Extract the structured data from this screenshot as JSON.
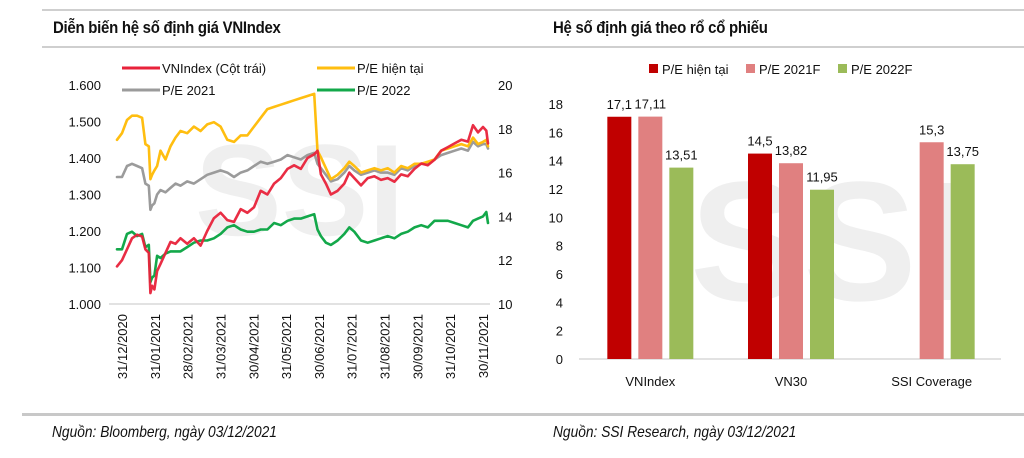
{
  "left_panel": {
    "title": "Diễn biến hệ số định giá VNIndex",
    "source": "Nguồn: Bloomberg, ngày 03/12/2021"
  },
  "right_panel": {
    "title": "Hệ số định giá theo rổ cổ phiếu",
    "source": "Nguồn: SSI Research, ngày 03/12/2021"
  },
  "watermark": "SSI",
  "chart_data": [
    {
      "type": "line",
      "title": "Diễn biến hệ số định giá VNIndex",
      "xlabel": "",
      "ylabel": "",
      "y_left": {
        "range": [
          1000,
          1600
        ],
        "ticks": [
          "1.000",
          "1.100",
          "1.200",
          "1.300",
          "1.400",
          "1.500",
          "1.600"
        ],
        "values": [
          1000,
          1100,
          1200,
          1300,
          1400,
          1500,
          1600
        ]
      },
      "y_right": {
        "range": [
          10,
          20
        ],
        "ticks": [
          "10",
          "12",
          "14",
          "16",
          "18",
          "20"
        ],
        "values": [
          10,
          12,
          14,
          16,
          18,
          20
        ]
      },
      "x_ticks": [
        "31/12/2020",
        "31/01/2021",
        "28/02/2021",
        "31/03/2021",
        "30/04/2021",
        "31/05/2021",
        "30/06/2021",
        "31/07/2021",
        "31/08/2021",
        "30/09/2021",
        "31/10/2021",
        "30/11/2021"
      ],
      "x_range_months": [
        0,
        11.1
      ],
      "grid": false,
      "legend_position": "top",
      "series": [
        {
          "name": "VNIndex (Cột trái)",
          "axis": "left",
          "color": "#e8223a",
          "x": [
            0,
            0.15,
            0.3,
            0.45,
            0.6,
            0.75,
            0.85,
            0.95,
            1.0,
            1.05,
            1.12,
            1.2,
            1.3,
            1.45,
            1.6,
            1.75,
            1.9,
            2.1,
            2.3,
            2.5,
            2.7,
            2.9,
            3.1,
            3.3,
            3.5,
            3.7,
            3.9,
            4.1,
            4.3,
            4.5,
            4.7,
            4.9,
            5.1,
            5.3,
            5.5,
            5.7,
            5.9,
            6.0,
            6.1,
            6.25,
            6.4,
            6.6,
            6.8,
            6.95,
            7.1,
            7.3,
            7.5,
            7.7,
            7.9,
            8.1,
            8.3,
            8.5,
            8.7,
            8.9,
            9.1,
            9.3,
            9.5,
            9.7,
            9.9,
            10.1,
            10.3,
            10.5,
            10.65,
            10.8,
            10.95,
            11.05,
            11.1
          ],
          "values": [
            1103,
            1120,
            1150,
            1180,
            1190,
            1185,
            1150,
            1140,
            1030,
            1050,
            1040,
            1090,
            1110,
            1140,
            1170,
            1165,
            1180,
            1165,
            1180,
            1160,
            1200,
            1235,
            1250,
            1230,
            1225,
            1260,
            1250,
            1265,
            1310,
            1300,
            1330,
            1345,
            1370,
            1380,
            1370,
            1400,
            1410,
            1420,
            1355,
            1330,
            1300,
            1310,
            1330,
            1360,
            1345,
            1325,
            1345,
            1350,
            1340,
            1345,
            1335,
            1355,
            1350,
            1370,
            1385,
            1380,
            1395,
            1420,
            1430,
            1440,
            1450,
            1445,
            1490,
            1470,
            1485,
            1475,
            1440
          ]
        },
        {
          "name": "P/E hiện tại",
          "axis": "right",
          "color": "#ffbe10",
          "x": [
            0,
            0.15,
            0.3,
            0.45,
            0.6,
            0.75,
            0.85,
            0.95,
            1.0,
            1.05,
            1.12,
            1.2,
            1.3,
            1.45,
            1.6,
            1.75,
            1.9,
            2.1,
            2.3,
            2.5,
            2.7,
            2.9,
            3.1,
            3.3,
            3.5,
            3.7,
            3.9,
            4.1,
            4.3,
            4.5,
            4.7,
            4.9,
            5.1,
            5.3,
            5.5,
            5.7,
            5.9,
            6.0,
            6.1,
            6.25,
            6.4,
            6.6,
            6.8,
            6.95,
            7.1,
            7.3,
            7.5,
            7.7,
            7.9,
            8.1,
            8.3,
            8.5,
            8.7,
            8.9,
            9.1,
            9.3,
            9.5,
            9.7,
            9.9,
            10.1,
            10.3,
            10.5,
            10.65,
            10.8,
            10.95,
            11.05,
            11.1
          ],
          "values": [
            17.5,
            17.8,
            18.4,
            18.6,
            18.6,
            18.5,
            17.3,
            17.2,
            15.7,
            15.9,
            16.1,
            16.3,
            17.0,
            16.6,
            17.2,
            17.6,
            17.9,
            17.8,
            18.1,
            17.9,
            18.2,
            18.3,
            18.1,
            17.5,
            17.4,
            17.7,
            17.7,
            18.1,
            18.5,
            18.9,
            19.0,
            19.1,
            19.2,
            19.3,
            19.4,
            19.5,
            19.6,
            17.0,
            16.7,
            16.2,
            15.7,
            15.9,
            16.2,
            16.5,
            16.3,
            16.0,
            16.1,
            16.2,
            16.1,
            16.2,
            16.0,
            16.3,
            16.2,
            16.4,
            16.4,
            16.5,
            16.6,
            17.0,
            17.1,
            17.2,
            17.3,
            17.2,
            17.6,
            17.3,
            17.4,
            17.5,
            17.2
          ]
        },
        {
          "name": "P/E 2021",
          "axis": "right",
          "color": "#9b9b9b",
          "x": [
            0,
            0.15,
            0.3,
            0.45,
            0.6,
            0.75,
            0.85,
            0.95,
            1.0,
            1.05,
            1.12,
            1.2,
            1.3,
            1.45,
            1.6,
            1.75,
            1.9,
            2.1,
            2.3,
            2.5,
            2.7,
            2.9,
            3.1,
            3.3,
            3.5,
            3.7,
            3.9,
            4.1,
            4.3,
            4.5,
            4.7,
            4.9,
            5.1,
            5.3,
            5.5,
            5.7,
            5.9,
            6.0,
            6.1,
            6.25,
            6.4,
            6.6,
            6.8,
            6.95,
            7.1,
            7.3,
            7.5,
            7.7,
            7.9,
            8.1,
            8.3,
            8.5,
            8.7,
            8.9,
            9.1,
            9.3,
            9.5,
            9.7,
            9.9,
            10.1,
            10.3,
            10.5,
            10.65,
            10.8,
            10.95,
            11.05,
            11.1
          ],
          "values": [
            15.8,
            15.8,
            16.3,
            16.4,
            16.3,
            16.2,
            15.5,
            15.4,
            14.3,
            14.5,
            14.6,
            15.0,
            15.2,
            15.1,
            15.3,
            15.5,
            15.4,
            15.6,
            15.5,
            15.7,
            15.9,
            16.0,
            16.1,
            16.0,
            15.8,
            16.0,
            16.1,
            16.3,
            16.5,
            16.4,
            16.5,
            16.6,
            16.8,
            16.7,
            16.6,
            16.8,
            16.9,
            16.4,
            16.2,
            15.9,
            15.6,
            15.7,
            16.0,
            16.3,
            16.1,
            15.9,
            16.0,
            16.1,
            16.0,
            16.0,
            15.9,
            16.2,
            16.1,
            16.3,
            16.4,
            16.4,
            16.6,
            16.8,
            16.9,
            17.0,
            17.1,
            17.0,
            17.4,
            17.2,
            17.3,
            17.3,
            17.1
          ]
        },
        {
          "name": "P/E 2022",
          "axis": "right",
          "color": "#13a84a",
          "x": [
            0,
            0.15,
            0.3,
            0.45,
            0.6,
            0.75,
            0.85,
            0.95,
            1.0,
            1.05,
            1.12,
            1.2,
            1.3,
            1.45,
            1.6,
            1.75,
            1.9,
            2.1,
            2.3,
            2.5,
            2.7,
            2.9,
            3.1,
            3.3,
            3.5,
            3.7,
            3.9,
            4.1,
            4.3,
            4.5,
            4.7,
            4.9,
            5.1,
            5.3,
            5.5,
            5.7,
            5.9,
            6.0,
            6.1,
            6.25,
            6.4,
            6.6,
            6.8,
            6.95,
            7.1,
            7.3,
            7.5,
            7.7,
            7.9,
            8.1,
            8.3,
            8.5,
            8.7,
            8.9,
            9.1,
            9.3,
            9.5,
            9.7,
            9.9,
            10.1,
            10.3,
            10.5,
            10.65,
            10.8,
            10.95,
            11.05,
            11.1
          ],
          "values": [
            12.5,
            12.5,
            13.2,
            13.3,
            13.1,
            13.2,
            12.6,
            12.7,
            11.0,
            11.2,
            11.3,
            12.2,
            12.1,
            12.3,
            12.4,
            12.4,
            12.4,
            12.6,
            12.8,
            12.9,
            12.9,
            13.0,
            13.2,
            13.5,
            13.6,
            13.4,
            13.3,
            13.3,
            13.4,
            13.4,
            13.7,
            13.6,
            13.8,
            13.9,
            13.9,
            14.0,
            14.1,
            13.4,
            13.1,
            12.8,
            12.7,
            12.9,
            13.2,
            13.5,
            13.3,
            12.9,
            12.8,
            12.9,
            13.0,
            13.1,
            13.0,
            13.2,
            13.3,
            13.5,
            13.6,
            13.5,
            13.8,
            13.8,
            13.8,
            13.7,
            13.6,
            13.5,
            13.8,
            13.9,
            14.0,
            14.2,
            13.7
          ]
        }
      ]
    },
    {
      "type": "bar",
      "title": "Hệ số định giá theo rổ cổ phiếu",
      "xlabel": "",
      "ylabel": "",
      "ylim": [
        0,
        18
      ],
      "y_ticks": [
        0,
        2,
        4,
        6,
        8,
        10,
        12,
        14,
        16,
        18
      ],
      "grid": false,
      "legend_position": "top",
      "categories": [
        "VNIndex",
        "VN30",
        "SSI Coverage"
      ],
      "series": [
        {
          "name": "P/E hiện tại",
          "color": "#c00000",
          "values": [
            17.1,
            14.5,
            null
          ],
          "labels": [
            "17,1",
            "14,5",
            ""
          ]
        },
        {
          "name": "P/E 2021F",
          "color": "#e08080",
          "values": [
            17.11,
            13.82,
            15.3
          ],
          "labels": [
            "17,11",
            "13,82",
            "15,3"
          ]
        },
        {
          "name": "P/E 2022F",
          "color": "#9bbb59",
          "values": [
            13.51,
            11.95,
            13.75
          ],
          "labels": [
            "13,51",
            "11,95",
            "13,75"
          ]
        }
      ]
    }
  ]
}
